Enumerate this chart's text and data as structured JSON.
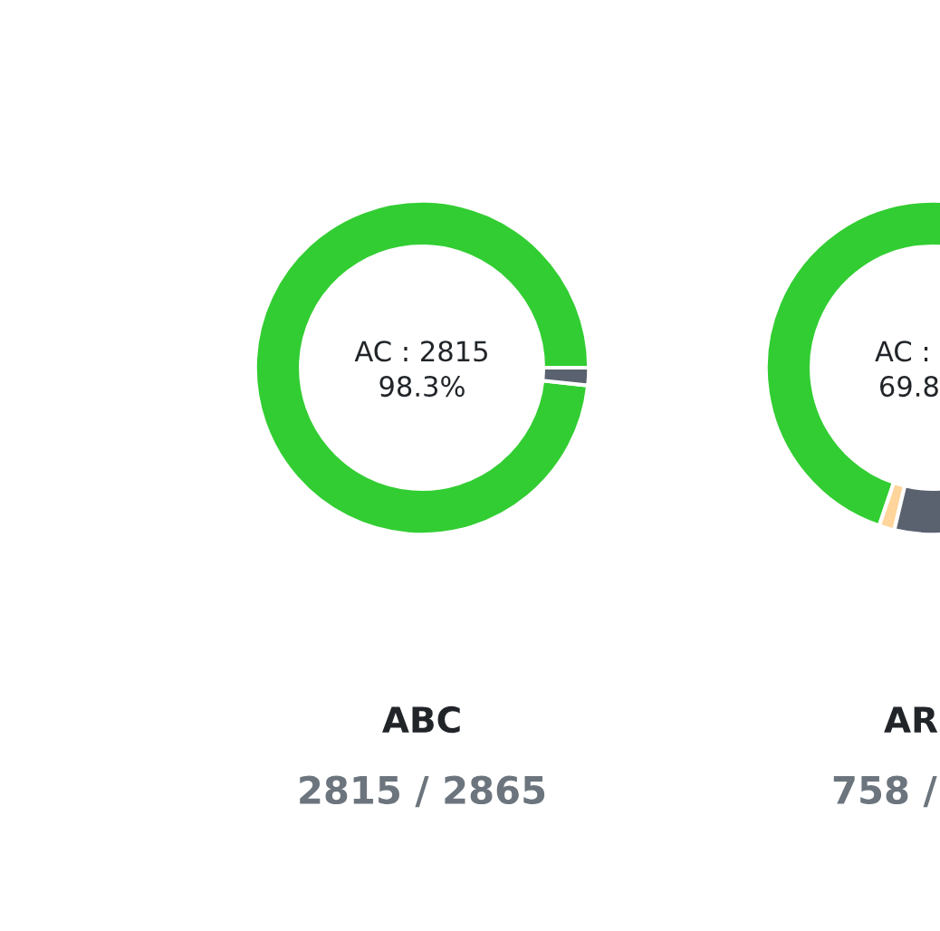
{
  "chart_data": [
    {
      "type": "donut",
      "title": "ABC",
      "subtitle": "2815 / 2865",
      "annotations": [
        "AC : 2815",
        "98.3%"
      ],
      "categories": [
        null,
        null
      ],
      "values": [
        98.3,
        1.7
      ],
      "colors": [
        "#32cd32",
        "#5a6270"
      ]
    },
    {
      "type": "donut",
      "title": "AR",
      "subtitle": "758 /",
      "annotations": [
        "AC :",
        "69.8"
      ],
      "categories": [
        null,
        null,
        null
      ],
      "values": [
        69.8,
        1.5,
        28.7
      ],
      "colors": [
        "#32cd32",
        "#ffd59b",
        "#5a6270"
      ]
    }
  ]
}
